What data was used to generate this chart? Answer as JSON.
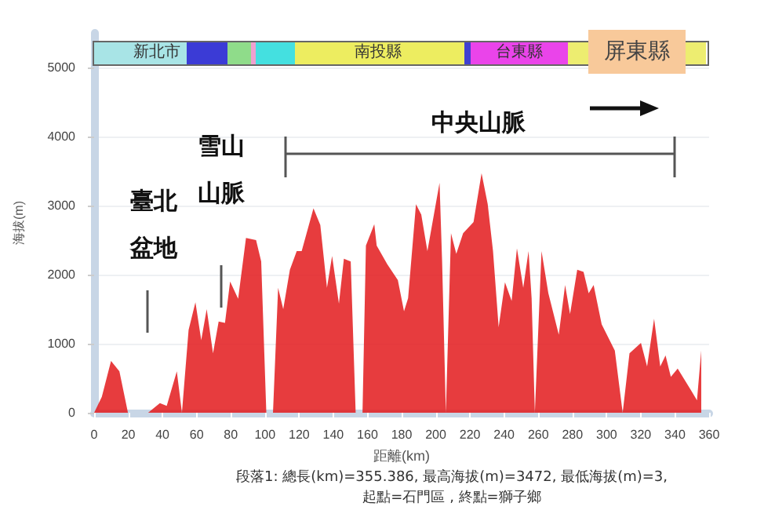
{
  "chart_data": {
    "type": "area",
    "xlabel": "距離(km)",
    "ylabel": "海拔(m)",
    "x": [
      0,
      4.5,
      9.9,
      14.8,
      19.8,
      31.6,
      38.5,
      42.5,
      48.4,
      51.4,
      55.3,
      59.3,
      62.7,
      65.9,
      69.6,
      72.9,
      76.6,
      79.6,
      84.3,
      88.9,
      94.8,
      97.8,
      100.8,
      104.7,
      107.7,
      110.7,
      114.6,
      118.6,
      121.5,
      128.4,
      132.4,
      136.3,
      139.3,
      143.3,
      146.2,
      150.2,
      153.1,
      157.1,
      159.1,
      164,
      165.4,
      171.6,
      177.8,
      181.4,
      183.8,
      188.4,
      191.5,
      195.1,
      202.2,
      203.7,
      205.9,
      208.9,
      212,
      216,
      222.1,
      226.8,
      230.4,
      233.5,
      236.8,
      240.5,
      244.4,
      247.5,
      251.2,
      254.3,
      256.1,
      258,
      261.9,
      265.9,
      272,
      275.7,
      278.6,
      282.8,
      286.5,
      289.5,
      292.4,
      297.1,
      304.8,
      309.4,
      313.4,
      320.1,
      323.7,
      327.8,
      331.4,
      334.5,
      337.6,
      341.6,
      349.3,
      352.9,
      355.4
    ],
    "series": [
      {
        "color": "#e31a1c",
        "values": [
          0,
          230,
          750,
          600,
          0,
          0,
          140,
          100,
          600,
          0,
          1200,
          1600,
          1050,
          1500,
          860,
          1320,
          1300,
          1900,
          1650,
          2530,
          2500,
          2190,
          0,
          0,
          1810,
          1500,
          2070,
          2340,
          2340,
          2960,
          2720,
          1810,
          2270,
          1580,
          2230,
          2190,
          0,
          0,
          2420,
          2730,
          2420,
          2150,
          1920,
          1470,
          1660,
          3020,
          2870,
          2340,
          3330,
          2190,
          0,
          2600,
          2300,
          2600,
          2760,
          3470,
          3020,
          2340,
          1240,
          1890,
          1620,
          2380,
          1810,
          2340,
          1660,
          0,
          2340,
          1730,
          1130,
          1850,
          1430,
          2070,
          2040,
          1730,
          1850,
          1280,
          900,
          0,
          860,
          1010,
          670,
          1360,
          670,
          830,
          520,
          640,
          330,
          180,
          900
        ]
      }
    ],
    "xlim": [
      0,
      360
    ],
    "xticks": [
      0,
      20,
      40,
      60,
      80,
      100,
      120,
      140,
      160,
      180,
      200,
      220,
      240,
      260,
      280,
      300,
      320,
      340,
      360
    ],
    "ylim": [
      0,
      5500
    ],
    "yticks": [
      0,
      1000,
      2000,
      3000,
      4000,
      5000
    ],
    "grid": "y",
    "annotations": [
      "臺北盆地",
      "雪山山脈",
      "中央山脈",
      "新北市",
      "南投縣",
      "台東縣",
      "屏東縣",
      "段落1: 總長(km)=355.386, 最高海拔(m)=3472, 最低海拔(m)=3,",
      "起點=石門區 , 終點=獅子鄉"
    ]
  }
}
